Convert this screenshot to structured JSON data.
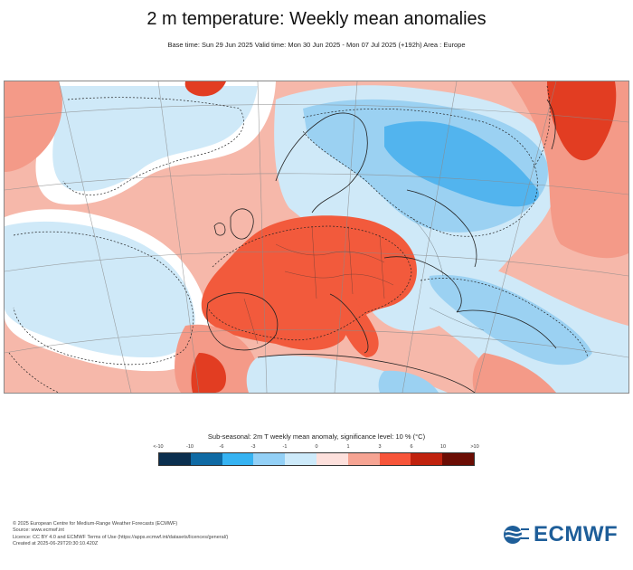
{
  "header": {
    "title": "2 m temperature: Weekly mean anomalies",
    "subtitle": "Base time: Sun 29 Jun 2025 Valid time: Mon 30 Jun 2025 - Mon 07 Jul 2025 (+192h) Area : Europe"
  },
  "legend": {
    "title": "Sub-seasonal: 2m T weekly mean anomaly, significance level: 10 % (°C)",
    "ticks": [
      "<-10",
      "-10",
      "-6",
      "-3",
      "-1",
      "0",
      "1",
      "3",
      "6",
      "10",
      ">10"
    ],
    "colors": [
      "#0b2f4f",
      "#0f6aa4",
      "#36b3f2",
      "#93d0f6",
      "#cdeafa",
      "#fde0dc",
      "#f6a493",
      "#f7553a",
      "#c0220e",
      "#6b0d04"
    ]
  },
  "map_colors": {
    "warm_pale": "#f6b8aa",
    "warm_mid": "#f49a88",
    "warm_strong": "#f25a3c",
    "warm_hot": "#e23d22",
    "neutral": "#ffffff",
    "cool_pale": "#cfe9f8",
    "cool_mid": "#9bd1f2",
    "cool_strong": "#52b4ee"
  },
  "footer": {
    "lines": [
      "© 2025 European Centre for Medium-Range Weather Forecasts (ECMWF)",
      "Source: www.ecmwf.int",
      "Licence: CC BY 4.0 and ECMWF Terms of Use (https://apps.ecmwf.int/datasets/licences/general/)",
      "Created at 2025-06-29T20:30:10.420Z"
    ]
  },
  "logo": {
    "text": "ECMWF",
    "icon": "ecmwf-logo-icon"
  }
}
